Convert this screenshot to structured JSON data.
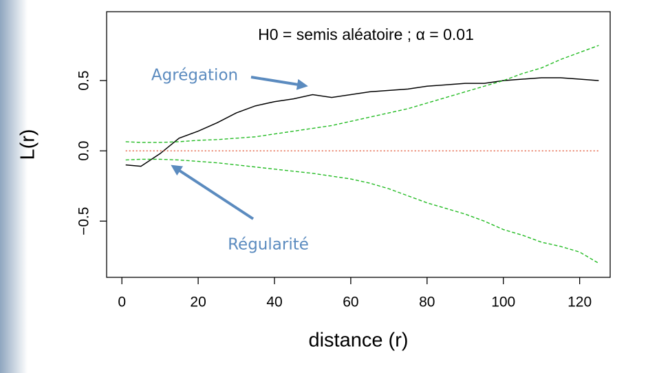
{
  "chart_data": {
    "type": "line",
    "title": "H0 = semis aléatoire ; α = 0.01",
    "x_label": "distance (r)",
    "y_label": "L(r)",
    "annotations": [
      "Agrégation",
      "Régularité"
    ],
    "x": [
      1,
      5,
      10,
      15,
      20,
      25,
      30,
      35,
      40,
      45,
      50,
      55,
      60,
      65,
      70,
      75,
      80,
      85,
      90,
      95,
      100,
      105,
      110,
      115,
      120,
      125
    ],
    "series": [
      {
        "color": "#000000",
        "dash": "solid",
        "values": [
          -0.1,
          -0.11,
          -0.02,
          0.09,
          0.14,
          0.2,
          0.27,
          0.32,
          0.35,
          0.37,
          0.4,
          0.38,
          0.4,
          0.42,
          0.43,
          0.44,
          0.46,
          0.47,
          0.48,
          0.48,
          0.5,
          0.51,
          0.52,
          0.52,
          0.51,
          0.5
        ]
      },
      {
        "color": "#22bb22",
        "dash": "dashed",
        "values": [
          0.065,
          0.06,
          0.06,
          0.065,
          0.075,
          0.08,
          0.09,
          0.1,
          0.12,
          0.14,
          0.16,
          0.18,
          0.21,
          0.24,
          0.27,
          0.3,
          0.34,
          0.38,
          0.42,
          0.46,
          0.5,
          0.55,
          0.59,
          0.65,
          0.7,
          0.75
        ]
      },
      {
        "color": "#22bb22",
        "dash": "dashed",
        "values": [
          -0.065,
          -0.06,
          -0.06,
          -0.065,
          -0.075,
          -0.085,
          -0.1,
          -0.115,
          -0.13,
          -0.145,
          -0.16,
          -0.18,
          -0.2,
          -0.23,
          -0.27,
          -0.32,
          -0.37,
          -0.41,
          -0.45,
          -0.5,
          -0.56,
          -0.6,
          -0.65,
          -0.68,
          -0.72,
          -0.8
        ]
      },
      {
        "color": "#e05030",
        "dash": "dotted",
        "values": [
          0,
          0,
          0,
          0,
          0,
          0,
          0,
          0,
          0,
          0,
          0,
          0,
          0,
          0,
          0,
          0,
          0,
          0,
          0,
          0,
          0,
          0,
          0,
          0,
          0,
          0
        ]
      }
    ],
    "xlim": [
      -4,
      128
    ],
    "ylim": [
      -0.9,
      0.99
    ],
    "xticks": [
      0,
      20,
      40,
      60,
      80,
      100,
      120
    ],
    "yticks": [
      {
        "value": -0.5,
        "label": "−0.5"
      },
      {
        "value": 0,
        "label": "0.0"
      },
      0.5
    ]
  }
}
